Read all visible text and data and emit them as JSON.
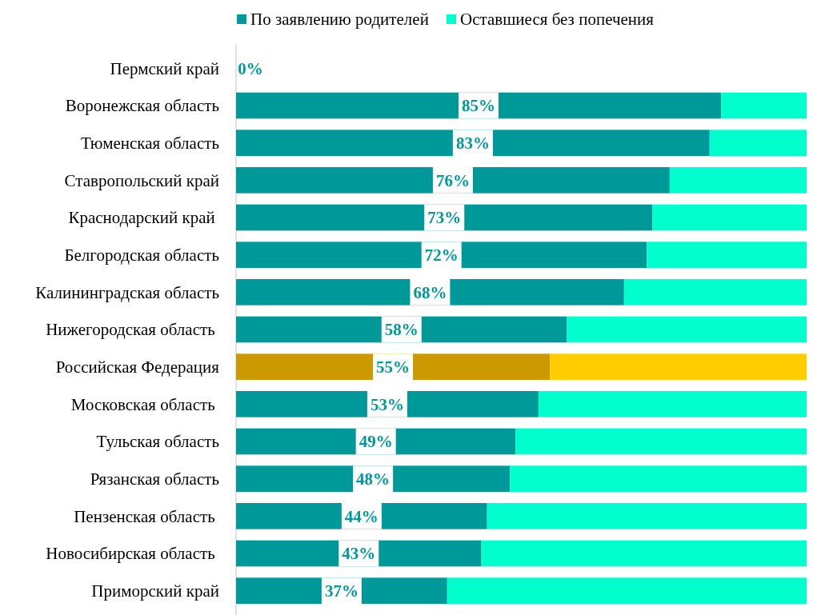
{
  "chart_data": {
    "type": "bar",
    "orientation": "horizontal",
    "stacked": true,
    "legend": "top",
    "tick_labels": "y",
    "xlim": [
      0,
      100
    ],
    "categories": [
      "Пермский край",
      "Воронежская область",
      "Тюменская область",
      "Ставропольский край",
      "Краснодарский край ",
      "Белгородская область",
      "Калининградская область",
      "Нижегородская область ",
      "Российская Федерация",
      "Московская область ",
      "Тульская область",
      "Рязанская область",
      "Пензенская область ",
      "Новосибирская область ",
      "Приморский край"
    ],
    "series": [
      {
        "name": "По заявлению родителей",
        "color": "#009999",
        "colors": [
          "#009999",
          "#009999",
          "#009999",
          "#009999",
          "#009999",
          "#009999",
          "#009999",
          "#009999",
          "#cc9900",
          "#009999",
          "#009999",
          "#009999",
          "#009999",
          "#009999",
          "#009999"
        ],
        "values": [
          0,
          85,
          83,
          76,
          73,
          72,
          68,
          58,
          55,
          53,
          49,
          48,
          44,
          43,
          37
        ],
        "value_labels": [
          "0%",
          "85%",
          "83%",
          "76%",
          "73%",
          "72%",
          "68%",
          "58%",
          "55%",
          "53%",
          "49%",
          "48%",
          "44%",
          "43%",
          "37%"
        ]
      },
      {
        "name": "Оставшиеся без попечения",
        "color": "#00ffcc",
        "colors": [
          null,
          "#00ffcc",
          "#00ffcc",
          "#00ffcc",
          "#00ffcc",
          "#00ffcc",
          "#00ffcc",
          "#00ffcc",
          "#ffcc00",
          "#00ffcc",
          "#00ffcc",
          "#00ffcc",
          "#00ffcc",
          "#00ffcc",
          "#00ffcc"
        ],
        "values": [
          null,
          15,
          17,
          24,
          27,
          28,
          32,
          42,
          45,
          47,
          51,
          52,
          56,
          57,
          63
        ]
      }
    ]
  }
}
